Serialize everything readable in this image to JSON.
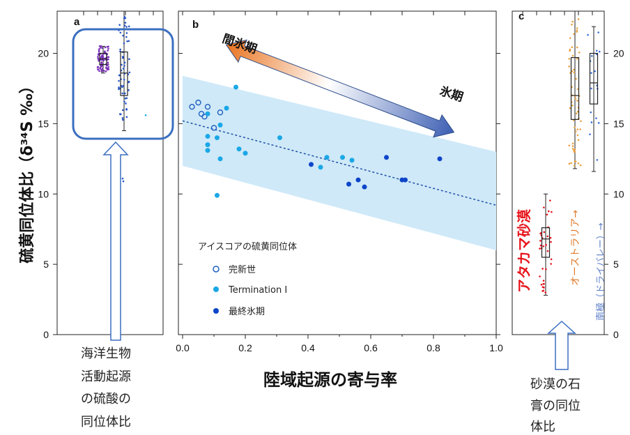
{
  "ylabel": "硫黄同位体比（δ³⁴S ‰）",
  "xlabel": "陸域起源の寄与率",
  "panels": {
    "a": "a",
    "b": "b",
    "c": "c"
  },
  "arrow": {
    "left_label": "間氷期",
    "right_label": "氷期"
  },
  "legend": {
    "title": "アイスコアの硫黄同位体",
    "holocene": "完新世",
    "termination": "Termination I",
    "lgm": "最終氷期"
  },
  "notes": {
    "marine_line1": "海洋生物",
    "marine_line2": "活動起源",
    "marine_line3": "の硫酸の",
    "marine_line4": "同位体比",
    "desert_line1": "砂漠の石",
    "desert_line2": "膏の同位",
    "desert_line3": "体比"
  },
  "panel_c_labels": {
    "atacama": "アタカマ砂漠",
    "australia": "オーストラリア→",
    "antarctica_dry": "南極（ドライバレー）→"
  },
  "colors": {
    "holocene": "#1f5fbf",
    "termination": "#1aa7e6",
    "lgm": "#0d45c9",
    "band": "#cfe9f8",
    "trend": "#1e4fa8",
    "box_outline": "#3b6fc0",
    "atacama": "#e8141c",
    "australia": "#e8a040",
    "antarctica": "#3b6fd8",
    "marine_purple": "#7a30b8",
    "marine_blue": "#2a56c8"
  },
  "chart_data": [
    {
      "type": "scatter",
      "panel": "a",
      "xlabel": "",
      "ylabel": "硫黄同位体比（δ³⁴S ‰）",
      "ylim": [
        0,
        23
      ],
      "yticks": [
        0,
        5,
        10,
        15,
        20
      ],
      "series": [
        {
          "color": "#7a30b8",
          "box": {
            "q1": 19.2,
            "median": 19.6,
            "q3": 20.0,
            "whisker_low": 18.6,
            "whisker_high": 20.5
          }
        },
        {
          "color": "#2a56c8",
          "box": {
            "q1": 17.0,
            "median": 18.6,
            "q3": 20.1,
            "whisker_low": 14.5,
            "whisker_high": 23.0
          }
        }
      ]
    },
    {
      "type": "scatter",
      "panel": "b",
      "xlabel": "陸域起源の寄与率",
      "xlim": [
        0,
        1.0
      ],
      "ylim": [
        0,
        23
      ],
      "xticks": [
        0.0,
        0.2,
        0.4,
        0.6,
        0.8,
        1.0
      ],
      "yticks": [
        0,
        5,
        10,
        15,
        20
      ],
      "trend": {
        "y_at_0": 15.2,
        "y_at_1": 9.2
      },
      "band": {
        "upper_at_0": 18.4,
        "upper_at_1": 13.0,
        "lower_at_0": 12.0,
        "lower_at_1": 6.0
      },
      "series": [
        {
          "name": "完新世",
          "points": [
            [
              0.03,
              16.2
            ],
            [
              0.05,
              16.5
            ],
            [
              0.06,
              15.7
            ],
            [
              0.07,
              15.5
            ],
            [
              0.08,
              16.2
            ],
            [
              0.1,
              14.7
            ],
            [
              0.12,
              15.8
            ]
          ]
        },
        {
          "name": "Termination I",
          "points": [
            [
              0.08,
              15.7
            ],
            [
              0.08,
              14.1
            ],
            [
              0.08,
              13.5
            ],
            [
              0.08,
              13.1
            ],
            [
              0.11,
              14.0
            ],
            [
              0.12,
              12.5
            ],
            [
              0.12,
              14.9
            ],
            [
              0.14,
              16.1
            ],
            [
              0.17,
              17.6
            ],
            [
              0.18,
              13.2
            ],
            [
              0.2,
              12.9
            ],
            [
              0.31,
              14.0
            ],
            [
              0.44,
              11.9
            ],
            [
              0.46,
              12.6
            ],
            [
              0.51,
              12.6
            ],
            [
              0.54,
              12.4
            ],
            [
              0.11,
              9.9
            ]
          ]
        },
        {
          "name": "最終氷期",
          "points": [
            [
              0.41,
              12.1
            ],
            [
              0.53,
              10.7
            ],
            [
              0.56,
              11.0
            ],
            [
              0.58,
              10.5
            ],
            [
              0.65,
              12.6
            ],
            [
              0.7,
              11.0
            ],
            [
              0.71,
              11.0
            ],
            [
              0.82,
              12.5
            ]
          ]
        }
      ]
    },
    {
      "type": "scatter",
      "panel": "c",
      "ylim": [
        0,
        23
      ],
      "yticks": [
        0,
        5,
        10,
        15,
        20
      ],
      "series": [
        {
          "color": "#e8141c",
          "box": {
            "q1": 5.5,
            "median": 6.8,
            "q3": 7.6,
            "whisker_low": 2.8,
            "whisker_high": 10.0
          }
        },
        {
          "color": "#e8a040",
          "box": {
            "q1": 15.3,
            "median": 17.0,
            "q3": 19.7,
            "whisker_low": 11.8,
            "whisker_high": 23.0
          }
        },
        {
          "color": "#3b6fd8",
          "box": {
            "q1": 16.4,
            "median": 17.9,
            "q3": 20.0,
            "whisker_low": 11.6,
            "whisker_high": 21.9
          }
        }
      ]
    }
  ]
}
